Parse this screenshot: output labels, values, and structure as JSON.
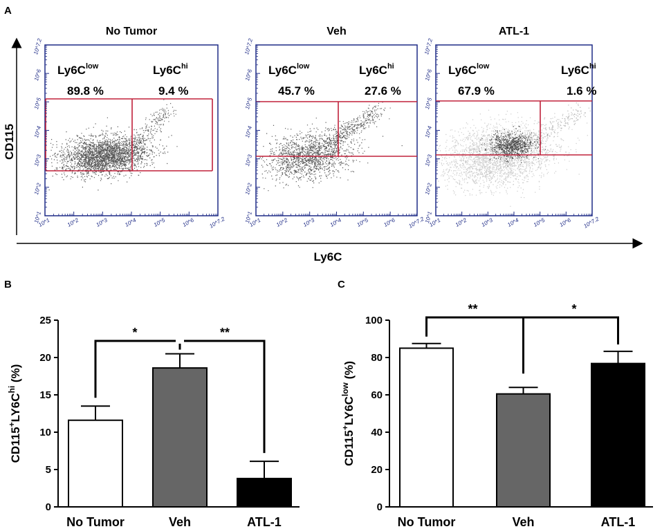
{
  "panel_labels": {
    "a": "A",
    "b": "B",
    "c": "C"
  },
  "colors": {
    "plot_frame": "#1d2a86",
    "gate": "#c0203a",
    "dots_dark": "#111111",
    "dots_light": "#a8a8a8",
    "bar_no_tumor": "#ffffff",
    "bar_veh": "#666666",
    "bar_atl": "#000000"
  },
  "flow": {
    "x_axis_title": "Ly6C",
    "y_axis_title": "CD115",
    "tick_labels": [
      "10^1",
      "10^2",
      "10^3",
      "10^4",
      "10^5",
      "10^6",
      "10^7.2"
    ],
    "plots": [
      {
        "title": "No Tumor",
        "low_label": "Ly6C",
        "low_sup": "low",
        "hi_label": "Ly6C",
        "hi_sup": "hi",
        "low_pct": "89.8 %",
        "hi_pct": "9.4 %"
      },
      {
        "title": "Veh",
        "low_label": "Ly6C",
        "low_sup": "low",
        "hi_label": "Ly6C",
        "hi_sup": "hi",
        "low_pct": "45.7 %",
        "hi_pct": "27.6 %"
      },
      {
        "title": "ATL-1",
        "low_label": "Ly6C",
        "low_sup": "low",
        "hi_label": "Ly6C",
        "hi_sup": "hi",
        "low_pct": "67.9 %",
        "hi_pct": "1.6 %"
      }
    ]
  },
  "chart_data": [
    {
      "panel": "B",
      "type": "bar",
      "ylabel_main": "CD115",
      "ylabel_sup1": "+",
      "ylabel_mid": "LY6C",
      "ylabel_sup2": "hi",
      "ylabel_unit": " (%)",
      "categories": [
        "No Tumor",
        "Veh",
        "ATL-1"
      ],
      "values": [
        11.6,
        18.6,
        3.8
      ],
      "errors": [
        1.9,
        1.9,
        2.3
      ],
      "ylim": [
        0,
        25
      ],
      "yticks": [
        0,
        5,
        10,
        15,
        20,
        25
      ],
      "significance": [
        {
          "from": 0,
          "to": 1,
          "label": "*"
        },
        {
          "from": 1,
          "to": 2,
          "label": "**"
        }
      ]
    },
    {
      "panel": "C",
      "type": "bar",
      "ylabel_main": "CD115",
      "ylabel_sup1": "+",
      "ylabel_mid": "LY6C",
      "ylabel_sup2": "low",
      "ylabel_unit": " (%)",
      "categories": [
        "No Tumor",
        "Veh",
        "ATL-1"
      ],
      "values": [
        85,
        60.5,
        76.8
      ],
      "errors": [
        2.5,
        3.5,
        6.5
      ],
      "ylim": [
        0,
        100
      ],
      "yticks": [
        0,
        20,
        40,
        60,
        80,
        100
      ],
      "significance": [
        {
          "from": 0,
          "to": 1,
          "label": "**"
        },
        {
          "from": 1,
          "to": 2,
          "label": "*"
        }
      ]
    }
  ]
}
